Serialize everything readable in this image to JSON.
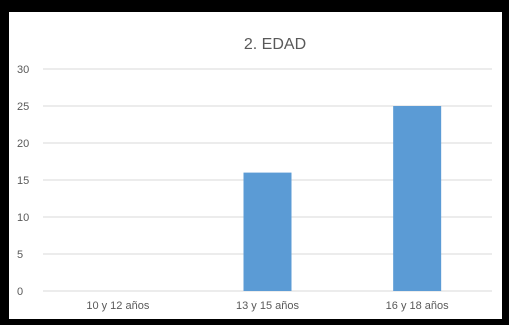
{
  "chart_data": {
    "type": "bar",
    "title": "2. EDAD",
    "categories": [
      "10 y 12 años",
      "13 y 15 años",
      "16 y 18 años"
    ],
    "values": [
      0,
      16,
      25
    ],
    "ylim": [
      0,
      30
    ],
    "yticks": [
      0,
      5,
      10,
      15,
      20,
      25,
      30
    ],
    "grid": true,
    "legend": "none",
    "colors": {
      "bar": "#5b9bd5",
      "grid": "#d9d9d9",
      "text": "#595959",
      "border": "#000000",
      "background": "#ffffff"
    }
  }
}
